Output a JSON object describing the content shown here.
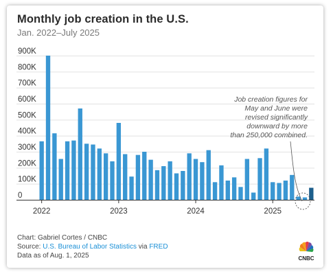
{
  "title": "Monthly job creation in the U.S.",
  "subtitle": "Jan. 2022–July 2025",
  "annotation": [
    "Job creation figures for",
    "May and June were",
    "revised significantly",
    "downward by more",
    "than 250,000 combined."
  ],
  "footer": {
    "credit": "Chart: Gabriel Cortes / CNBC",
    "source_prefix": "Source: ",
    "source_bls": "U.S. Bureau of Labor Statistics",
    "source_via": " via ",
    "source_fred": "FRED",
    "asof": "Data as of Aug. 1, 2025"
  },
  "logo_text": "CNBC",
  "colors": {
    "bar": "#3a97d3",
    "bar_latest": "#1d5f8c",
    "grid": "#e2e2e2",
    "link": "#1a8fd6"
  },
  "chart_data": {
    "type": "bar",
    "xlabel": "",
    "ylabel": "",
    "ylim": [
      0,
      900000
    ],
    "yticks": [
      0,
      100000,
      200000,
      300000,
      400000,
      500000,
      600000,
      700000,
      800000,
      900000
    ],
    "ytick_labels": [
      "0",
      "100K",
      "200K",
      "300K",
      "400K",
      "500K",
      "600K",
      "700K",
      "800K",
      "900K"
    ],
    "xtick_labels": [
      "2022",
      "2023",
      "2024",
      "2025"
    ],
    "xtick_positions": [
      "2022-01",
      "2023-01",
      "2024-01",
      "2025-01"
    ],
    "grid": true,
    "categories": [
      "2022-01",
      "2022-02",
      "2022-03",
      "2022-04",
      "2022-05",
      "2022-06",
      "2022-07",
      "2022-08",
      "2022-09",
      "2022-10",
      "2022-11",
      "2022-12",
      "2023-01",
      "2023-02",
      "2023-03",
      "2023-04",
      "2023-05",
      "2023-06",
      "2023-07",
      "2023-08",
      "2023-09",
      "2023-10",
      "2023-11",
      "2023-12",
      "2024-01",
      "2024-02",
      "2024-03",
      "2024-04",
      "2024-05",
      "2024-06",
      "2024-07",
      "2024-08",
      "2024-09",
      "2024-10",
      "2024-11",
      "2024-12",
      "2025-01",
      "2025-02",
      "2025-03",
      "2025-04",
      "2025-05",
      "2025-06",
      "2025-07"
    ],
    "values": [
      365000,
      900000,
      415000,
      255000,
      365000,
      370000,
      570000,
      350000,
      345000,
      320000,
      290000,
      240000,
      480000,
      285000,
      145000,
      280000,
      300000,
      250000,
      185000,
      210000,
      240000,
      165000,
      180000,
      290000,
      255000,
      235000,
      310000,
      110000,
      215000,
      120000,
      140000,
      80000,
      255000,
      45000,
      260000,
      320000,
      110000,
      105000,
      120000,
      155000,
      20000,
      15000,
      75000
    ],
    "highlight_index": 42
  }
}
